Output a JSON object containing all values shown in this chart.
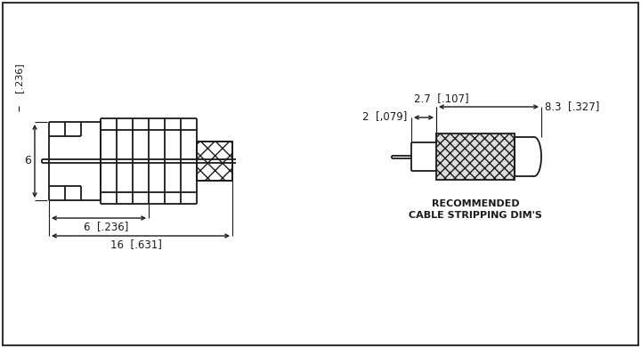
{
  "bg_color": "#ffffff",
  "line_color": "#1a1a1a",
  "dim_color": "#1a1a1a",
  "dim_labels": {
    "vertical_6": "6",
    "vertical_236": "[.236]",
    "horiz_6": "6  [.236]",
    "horiz_16": "16  [.631]",
    "strip_2": "2  [,079]",
    "strip_27": "2.7  [.107]",
    "strip_83": "8.3  [.327]"
  },
  "rec_label_line1": "RECOMMENDED",
  "rec_label_line2": "CABLE STRIPPING DIM'S"
}
